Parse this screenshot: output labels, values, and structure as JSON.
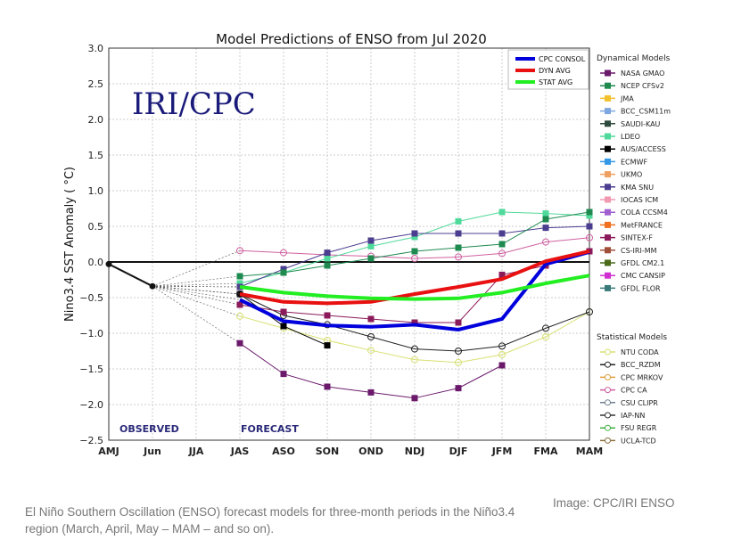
{
  "chart_data": {
    "type": "line",
    "title": "Model Predictions of ENSO from Jul 2020",
    "ylabel": "Nino3.4 SST Anomaly ( °C)",
    "watermark": "IRI/CPC",
    "categories": [
      "AMJ",
      "Jun",
      "JJA",
      "JAS",
      "ASO",
      "SON",
      "OND",
      "NDJ",
      "DJF",
      "JFM",
      "FMA",
      "MAM"
    ],
    "ylim": [
      -2.5,
      3.0
    ],
    "yticks": [
      "3.0",
      "2.5",
      "2.0",
      "1.5",
      "1.0",
      "0.5",
      "0.0",
      "−0.5",
      "−1.0",
      "−1.5",
      "−2.0",
      "−2.5"
    ],
    "grid": true,
    "annotations": {
      "observed": "OBSERVED",
      "forecast": "FORECAST"
    },
    "observed": {
      "x": [
        "AMJ",
        "Jun"
      ],
      "values": [
        -0.03,
        -0.34
      ]
    },
    "main_series": [
      {
        "name": "CPC CONSOL",
        "color": "#0000dd",
        "values": [
          -0.53,
          -0.83,
          -0.89,
          -0.91,
          -0.88,
          -0.95,
          -0.8,
          -0.03,
          0.14
        ]
      },
      {
        "name": "DYN AVG",
        "color": "#e81010",
        "values": [
          -0.45,
          -0.56,
          -0.58,
          -0.56,
          -0.45,
          -0.35,
          -0.24,
          0.01,
          0.15
        ]
      },
      {
        "name": "STAT AVG",
        "color": "#22ee22",
        "values": [
          -0.35,
          -0.43,
          -0.48,
          -0.51,
          -0.52,
          -0.51,
          -0.43,
          -0.3,
          -0.19
        ]
      }
    ],
    "forecast_x": [
      "JAS",
      "ASO",
      "SON",
      "OND",
      "NDJ",
      "DJF",
      "JFM",
      "FMA",
      "MAM"
    ],
    "model_series": [
      {
        "name": "NASA GMAO",
        "values": [
          -1.14,
          -1.57,
          -1.75,
          -1.83,
          -1.91,
          -1.77,
          -1.45,
          null,
          null
        ]
      },
      {
        "name": "NTU CODA",
        "values": [
          -0.76,
          -0.93,
          -1.1,
          -1.24,
          -1.37,
          -1.41,
          -1.3,
          -1.05,
          -0.7
        ]
      },
      {
        "name": "CPC CA",
        "values": [
          0.16,
          0.13,
          0.1,
          0.08,
          0.05,
          0.07,
          0.12,
          0.28,
          0.34
        ]
      },
      {
        "name": "LDEO",
        "values": [
          -0.3,
          -0.15,
          0.05,
          0.22,
          0.35,
          0.57,
          0.7,
          0.68,
          0.65
        ]
      },
      {
        "name": "KMA SNU",
        "values": [
          -0.35,
          -0.1,
          0.13,
          0.3,
          0.4,
          0.4,
          0.4,
          0.48,
          0.5
        ]
      },
      {
        "name": "AUS/ACCESS",
        "values": [
          -0.45,
          -0.9,
          -1.17,
          null,
          null,
          null,
          null,
          null,
          null
        ]
      },
      {
        "name": "BCC_RZDM",
        "values": [
          -0.45,
          -0.75,
          -0.88,
          -1.05,
          -1.22,
          -1.25,
          -1.18,
          -0.93,
          -0.7
        ]
      },
      {
        "name": "SINTEX-F",
        "values": [
          -0.6,
          -0.7,
          -0.75,
          -0.8,
          -0.85,
          -0.85,
          -0.18,
          -0.05,
          0.15
        ]
      },
      {
        "name": "NCEP CFSv2",
        "values": [
          -0.2,
          -0.15,
          -0.05,
          0.05,
          0.15,
          0.2,
          0.25,
          0.6,
          0.7
        ]
      }
    ],
    "legend_main": [
      "CPC CONSOL",
      "DYN AVG",
      "STAT AVG"
    ],
    "legend_dynamical": {
      "title": "Dynamical Models",
      "items": [
        {
          "name": "NASA GMAO",
          "color": "#6b1a6b"
        },
        {
          "name": "NCEP CFSv2",
          "color": "#1e8a4f"
        },
        {
          "name": "JMA",
          "color": "#f2c12e"
        },
        {
          "name": "BCC_CSM11m",
          "color": "#7ea6e0"
        },
        {
          "name": "SAUDI-KAU",
          "color": "#2c4a3e"
        },
        {
          "name": "LDEO",
          "color": "#4fd99a"
        },
        {
          "name": "AUS/ACCESS",
          "color": "#000000"
        },
        {
          "name": "ECMWF",
          "color": "#3399e6"
        },
        {
          "name": "UKMO",
          "color": "#f0a060"
        },
        {
          "name": "KMA SNU",
          "color": "#4b3d8f"
        },
        {
          "name": "IOCAS ICM",
          "color": "#f099b0"
        },
        {
          "name": "COLA CCSM4",
          "color": "#a060d0"
        },
        {
          "name": "MetFRANCE",
          "color": "#f07020"
        },
        {
          "name": "SINTEX-F",
          "color": "#8b1a5a"
        },
        {
          "name": "CS-IRI-MM",
          "color": "#a0503a"
        },
        {
          "name": "GFDL CM2.1",
          "color": "#4a6a1a"
        },
        {
          "name": "CMC CANSIP",
          "color": "#d030d0"
        },
        {
          "name": "GFDL FLOR",
          "color": "#3a7a7a"
        }
      ]
    },
    "legend_statistical": {
      "title": "Statistical Models",
      "items": [
        {
          "name": "NTU CODA",
          "color": "#d8e070"
        },
        {
          "name": "BCC_RZDM",
          "color": "#222222"
        },
        {
          "name": "CPC MRKOV",
          "color": "#e0a040"
        },
        {
          "name": "CPC CA",
          "color": "#d060a0"
        },
        {
          "name": "CSU CLIPR",
          "color": "#708090"
        },
        {
          "name": "IAP-NN",
          "color": "#333333"
        },
        {
          "name": "FSU REGR",
          "color": "#40b040"
        },
        {
          "name": "UCLA-TCD",
          "color": "#8a7040"
        }
      ]
    }
  },
  "caption": "El Niño Southern Oscillation (ENSO) forecast models for three-month periods in the Niño3.4 region (March, April, May – MAM – and so on).",
  "credit": "Image: CPC/IRI ENSO"
}
